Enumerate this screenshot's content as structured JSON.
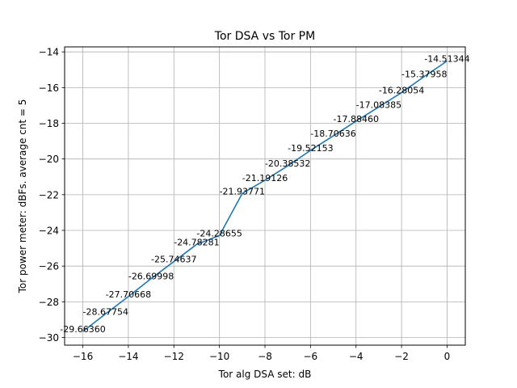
{
  "chart_data": {
    "type": "line",
    "title": "Tor DSA vs Tor PM",
    "xlabel": "Tor alg DSA set: dB",
    "ylabel": "Tor power meter: dBFs. average cnt = 5",
    "xlim": [
      -16.8,
      0.8
    ],
    "ylim": [
      -30.43,
      -13.72
    ],
    "grid": true,
    "x_ticks": [
      -16,
      -14,
      -12,
      -10,
      -8,
      -6,
      -4,
      -2,
      0
    ],
    "y_ticks": [
      -30,
      -28,
      -26,
      -24,
      -22,
      -20,
      -18,
      -16,
      -14
    ],
    "x_tick_labels": [
      "−16",
      "−14",
      "−12",
      "−10",
      "−8",
      "−6",
      "−4",
      "−2",
      "0"
    ],
    "y_tick_labels": [
      "−30",
      "−28",
      "−26",
      "−24",
      "−22",
      "−20",
      "−18",
      "−16",
      "−14"
    ],
    "line_color": "#1f77b4",
    "series": [
      {
        "x": [
          -16,
          -15,
          -14,
          -13,
          -12,
          -11,
          -10,
          -9,
          -8,
          -7,
          -6,
          -5,
          -4,
          -3,
          -2,
          -1,
          0
        ],
        "y": [
          -29.6636,
          -28.67754,
          -27.70668,
          -26.69998,
          -25.74637,
          -24.78281,
          -24.28655,
          -21.93771,
          -21.19126,
          -20.38532,
          -19.52153,
          -18.70636,
          -17.8846,
          -17.08385,
          -16.28054,
          -15.37958,
          -14.51344
        ],
        "labels": [
          "-29.66360",
          "-28.67754",
          "-27.70668",
          "-26.69998",
          "-25.74637",
          "-24.78281",
          "-24.28655",
          "-21.93771",
          "-21.19126",
          "-20.38532",
          "-19.52153",
          "-18.70636",
          "-17.88460",
          "-17.08385",
          "-16.28054",
          "-15.37958",
          "-14.51344"
        ]
      }
    ]
  }
}
